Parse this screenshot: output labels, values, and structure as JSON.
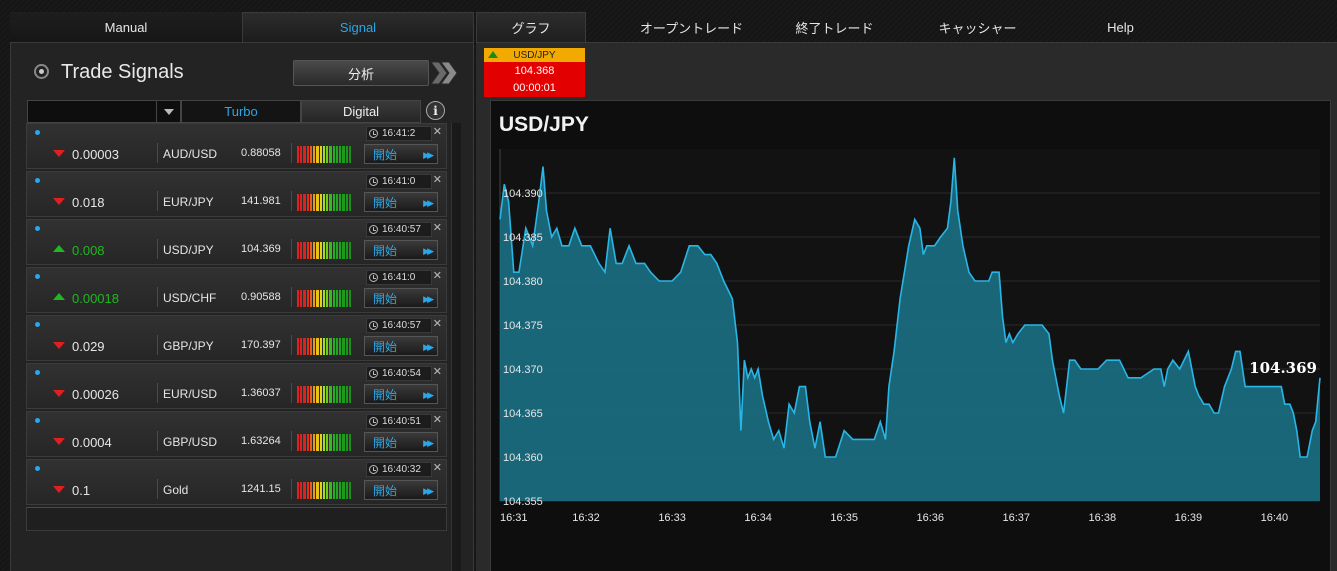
{
  "left_tabs": {
    "manual": "Manual",
    "signal": "Signal"
  },
  "right_tabs": [
    "グラフ",
    "オープントレード",
    "終了トレード",
    "キャッシャー",
    "Help"
  ],
  "panel": {
    "title": "Trade Signals",
    "analysis_button": "分析"
  },
  "filter": {
    "select_value": "",
    "turbo": "Turbo",
    "digital": "Digital",
    "info": "i"
  },
  "signals": [
    {
      "direction": "down",
      "value": "0.00003",
      "pair": "AUD/USD",
      "price": "0.88058",
      "time": "16:41:2",
      "button": "開始"
    },
    {
      "direction": "down",
      "value": "0.018",
      "pair": "EUR/JPY",
      "price": "141.981",
      "time": "16:41:0",
      "button": "開始"
    },
    {
      "direction": "up",
      "value": "0.008",
      "pair": "USD/JPY",
      "price": "104.369",
      "time": "16:40:57",
      "button": "開始"
    },
    {
      "direction": "up",
      "value": "0.00018",
      "pair": "USD/CHF",
      "price": "0.90588",
      "time": "16:41:0",
      "button": "開始"
    },
    {
      "direction": "down",
      "value": "0.029",
      "pair": "GBP/JPY",
      "price": "170.397",
      "time": "16:40:57",
      "button": "開始"
    },
    {
      "direction": "down",
      "value": "0.00026",
      "pair": "EUR/USD",
      "price": "1.36037",
      "time": "16:40:54",
      "button": "開始"
    },
    {
      "direction": "down",
      "value": "0.0004",
      "pair": "GBP/USD",
      "price": "1.63264",
      "time": "16:40:51",
      "button": "開始"
    },
    {
      "direction": "down",
      "value": "0.1",
      "pair": "Gold",
      "price": "1241.15",
      "time": "16:40:32",
      "button": "開始"
    }
  ],
  "ticker": {
    "pair": "USD/JPY",
    "price": "104.368",
    "timer": "00:00:01",
    "direction": "up"
  },
  "colors": {
    "accent": "#2aa7e8",
    "up": "#1fb81f",
    "down": "#e02020",
    "ticker_bg": "#e20000",
    "ticker_head": "#f2a900",
    "chart_line": "#29b6e6",
    "chart_fill": "#1a6b80"
  },
  "chart_data": {
    "type": "area",
    "title": "USD/JPY",
    "current_label": "104.369",
    "ylim": [
      104.355,
      104.395
    ],
    "y_ticks": [
      "104.355",
      "104.360",
      "104.365",
      "104.370",
      "104.375",
      "104.380",
      "104.385",
      "104.390"
    ],
    "x_ticks": [
      "16:31",
      "16:32",
      "16:33",
      "16:34",
      "16:35",
      "16:36",
      "16:37",
      "16:38",
      "16:39",
      "16:40"
    ],
    "grid": true,
    "series": [
      {
        "values": [
          [
            0.0,
            104.387
          ],
          [
            0.05,
            104.391
          ],
          [
            0.1,
            104.389
          ],
          [
            0.16,
            104.381
          ],
          [
            0.22,
            104.381
          ],
          [
            0.3,
            104.386
          ],
          [
            0.38,
            104.384
          ],
          [
            0.45,
            104.389
          ],
          [
            0.5,
            104.393
          ],
          [
            0.54,
            104.388
          ],
          [
            0.6,
            104.385
          ],
          [
            0.66,
            104.386
          ],
          [
            0.72,
            104.384
          ],
          [
            0.8,
            104.384
          ],
          [
            0.87,
            104.386
          ],
          [
            0.95,
            104.384
          ],
          [
            1.05,
            104.384
          ],
          [
            1.15,
            104.382
          ],
          [
            1.22,
            104.381
          ],
          [
            1.28,
            104.386
          ],
          [
            1.35,
            104.382
          ],
          [
            1.42,
            104.382
          ],
          [
            1.5,
            104.384
          ],
          [
            1.58,
            104.382
          ],
          [
            1.68,
            104.382
          ],
          [
            1.75,
            104.381
          ],
          [
            1.85,
            104.38
          ],
          [
            2.0,
            104.38
          ],
          [
            2.1,
            104.381
          ],
          [
            2.2,
            104.384
          ],
          [
            2.3,
            104.384
          ],
          [
            2.38,
            104.383
          ],
          [
            2.45,
            104.383
          ],
          [
            2.52,
            104.382
          ],
          [
            2.6,
            104.38
          ],
          [
            2.7,
            104.378
          ],
          [
            2.76,
            104.373
          ],
          [
            2.8,
            104.363
          ],
          [
            2.84,
            104.371
          ],
          [
            2.88,
            104.369
          ],
          [
            2.92,
            104.37
          ],
          [
            2.96,
            104.369
          ],
          [
            3.0,
            104.37
          ],
          [
            3.05,
            104.367
          ],
          [
            3.12,
            104.364
          ],
          [
            3.18,
            104.362
          ],
          [
            3.24,
            104.363
          ],
          [
            3.3,
            104.361
          ],
          [
            3.36,
            104.366
          ],
          [
            3.42,
            104.365
          ],
          [
            3.48,
            104.368
          ],
          [
            3.55,
            104.368
          ],
          [
            3.6,
            104.364
          ],
          [
            3.66,
            104.361
          ],
          [
            3.72,
            104.364
          ],
          [
            3.78,
            104.36
          ],
          [
            3.9,
            104.36
          ],
          [
            4.0,
            104.363
          ],
          [
            4.1,
            104.362
          ],
          [
            4.25,
            104.362
          ],
          [
            4.35,
            104.362
          ],
          [
            4.42,
            104.364
          ],
          [
            4.48,
            104.362
          ],
          [
            4.52,
            104.368
          ],
          [
            4.58,
            104.372
          ],
          [
            4.65,
            104.378
          ],
          [
            4.75,
            104.384
          ],
          [
            4.82,
            104.387
          ],
          [
            4.88,
            104.386
          ],
          [
            4.92,
            104.383
          ],
          [
            4.96,
            104.384
          ],
          [
            5.05,
            104.384
          ],
          [
            5.12,
            104.385
          ],
          [
            5.2,
            104.386
          ],
          [
            5.24,
            104.389
          ],
          [
            5.28,
            104.394
          ],
          [
            5.32,
            104.388
          ],
          [
            5.38,
            104.384
          ],
          [
            5.45,
            104.381
          ],
          [
            5.52,
            104.38
          ],
          [
            5.6,
            104.38
          ],
          [
            5.68,
            104.38
          ],
          [
            5.72,
            104.381
          ],
          [
            5.8,
            104.381
          ],
          [
            5.84,
            104.376
          ],
          [
            5.88,
            104.373
          ],
          [
            5.92,
            104.374
          ],
          [
            5.96,
            104.373
          ],
          [
            6.02,
            104.374
          ],
          [
            6.1,
            104.375
          ],
          [
            6.2,
            104.375
          ],
          [
            6.3,
            104.375
          ],
          [
            6.38,
            104.374
          ],
          [
            6.42,
            104.371
          ],
          [
            6.5,
            104.367
          ],
          [
            6.55,
            104.365
          ],
          [
            6.62,
            104.371
          ],
          [
            6.68,
            104.371
          ],
          [
            6.75,
            104.37
          ],
          [
            6.85,
            104.37
          ],
          [
            6.95,
            104.37
          ],
          [
            7.05,
            104.371
          ],
          [
            7.2,
            104.371
          ],
          [
            7.3,
            104.369
          ],
          [
            7.45,
            104.369
          ],
          [
            7.6,
            104.37
          ],
          [
            7.68,
            104.37
          ],
          [
            7.72,
            104.368
          ],
          [
            7.76,
            104.37
          ],
          [
            7.82,
            104.371
          ],
          [
            7.9,
            104.37
          ],
          [
            8.0,
            104.372
          ],
          [
            8.08,
            104.368
          ],
          [
            8.12,
            104.367
          ],
          [
            8.18,
            104.366
          ],
          [
            8.24,
            104.366
          ],
          [
            8.3,
            104.365
          ],
          [
            8.35,
            104.365
          ],
          [
            8.42,
            104.368
          ],
          [
            8.5,
            104.37
          ],
          [
            8.55,
            104.372
          ],
          [
            8.6,
            104.372
          ],
          [
            8.66,
            104.368
          ],
          [
            8.75,
            104.368
          ],
          [
            8.9,
            104.368
          ],
          [
            9.0,
            104.368
          ],
          [
            9.08,
            104.368
          ],
          [
            9.12,
            104.366
          ],
          [
            9.18,
            104.366
          ],
          [
            9.22,
            104.365
          ],
          [
            9.26,
            104.363
          ],
          [
            9.3,
            104.36
          ],
          [
            9.38,
            104.36
          ],
          [
            9.44,
            104.363
          ],
          [
            9.48,
            104.364
          ],
          [
            9.53,
            104.369
          ]
        ]
      }
    ]
  }
}
